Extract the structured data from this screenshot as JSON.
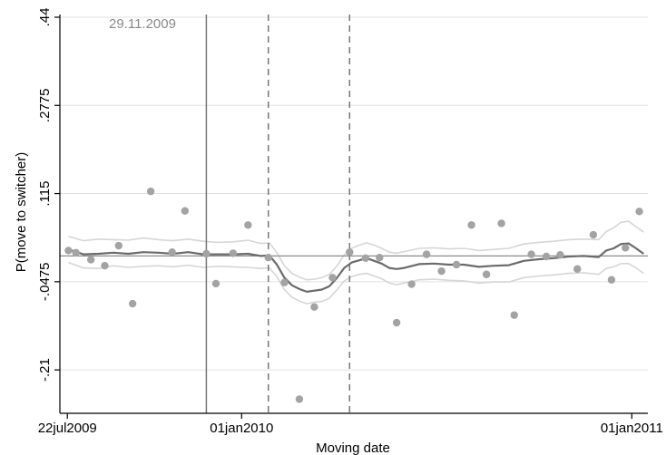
{
  "chart_data": {
    "type": "scatter",
    "xlabel": "Moving date",
    "ylabel": "P(move to switcher)",
    "x_tick_labels": [
      "22jul2009",
      "01jan2010",
      "01jan2011"
    ],
    "x_ticks": [
      "2009-07-22",
      "2010-01-01",
      "2011-01-01"
    ],
    "xlim": [
      "2009-07-15",
      "2011-01-16"
    ],
    "y_tick_labels": [
      ".44",
      ".2775",
      ".115",
      "-.0475",
      "-.21"
    ],
    "y_ticks": [
      0.44,
      0.2775,
      0.115,
      -0.0475,
      -0.21
    ],
    "ylim": [
      -0.29,
      0.445
    ],
    "grid": true,
    "reference_lines": {
      "horizontal_y": 0.0,
      "solid_vertical": "2009-11-29",
      "dashed_vertical": [
        "2010-01-26",
        "2010-04-12"
      ]
    },
    "annotation": "29.11.2009",
    "colors": {
      "scatter": "#a3a3a3",
      "trend": "#6b6b6b",
      "band": "#d6d6d6",
      "grid": "#e1e1e1",
      "refline": "#777777"
    },
    "series": [
      {
        "type": "scatter",
        "points": [
          {
            "x": "2009-07-23",
            "y": 0.01
          },
          {
            "x": "2009-07-30",
            "y": 0.006
          },
          {
            "x": "2009-08-13",
            "y": -0.007
          },
          {
            "x": "2009-08-26",
            "y": -0.018
          },
          {
            "x": "2009-09-08",
            "y": 0.019
          },
          {
            "x": "2009-09-21",
            "y": -0.088
          },
          {
            "x": "2009-10-08",
            "y": 0.119
          },
          {
            "x": "2009-10-28",
            "y": 0.007
          },
          {
            "x": "2009-11-09",
            "y": 0.083
          },
          {
            "x": "2009-11-29",
            "y": 0.004
          },
          {
            "x": "2009-12-08",
            "y": -0.051
          },
          {
            "x": "2009-12-24",
            "y": 0.005
          },
          {
            "x": "2010-01-07",
            "y": 0.057
          },
          {
            "x": "2010-01-26",
            "y": -0.003
          },
          {
            "x": "2010-02-10",
            "y": -0.049
          },
          {
            "x": "2010-02-24",
            "y": -0.264
          },
          {
            "x": "2010-03-10",
            "y": -0.094
          },
          {
            "x": "2010-03-27",
            "y": -0.04
          },
          {
            "x": "2010-04-12",
            "y": 0.007
          },
          {
            "x": "2010-04-27",
            "y": -0.004
          },
          {
            "x": "2010-05-10",
            "y": -0.003
          },
          {
            "x": "2010-05-26",
            "y": -0.123
          },
          {
            "x": "2010-06-09",
            "y": -0.052
          },
          {
            "x": "2010-06-23",
            "y": 0.003
          },
          {
            "x": "2010-07-07",
            "y": -0.028
          },
          {
            "x": "2010-07-21",
            "y": -0.016
          },
          {
            "x": "2010-08-04",
            "y": 0.057
          },
          {
            "x": "2010-08-18",
            "y": -0.034
          },
          {
            "x": "2010-09-01",
            "y": 0.06
          },
          {
            "x": "2010-09-13",
            "y": -0.109
          },
          {
            "x": "2010-09-29",
            "y": 0.003
          },
          {
            "x": "2010-10-13",
            "y": -0.001
          },
          {
            "x": "2010-10-26",
            "y": 0.002
          },
          {
            "x": "2010-11-11",
            "y": -0.024
          },
          {
            "x": "2010-11-26",
            "y": 0.039
          },
          {
            "x": "2010-12-13",
            "y": -0.044
          },
          {
            "x": "2010-12-26",
            "y": 0.015
          },
          {
            "x": "2011-01-08",
            "y": 0.082
          }
        ]
      },
      {
        "type": "line",
        "role": "moving-average",
        "points": [
          {
            "x": "2009-07-23",
            "y": 0.012
          },
          {
            "x": "2009-08-06",
            "y": 0.003
          },
          {
            "x": "2009-08-20",
            "y": 0.004
          },
          {
            "x": "2009-09-03",
            "y": 0.006
          },
          {
            "x": "2009-09-17",
            "y": 0.004
          },
          {
            "x": "2009-10-01",
            "y": 0.007
          },
          {
            "x": "2009-10-15",
            "y": 0.006
          },
          {
            "x": "2009-10-29",
            "y": 0.004
          },
          {
            "x": "2009-11-12",
            "y": 0.007
          },
          {
            "x": "2009-11-26",
            "y": 0.003
          },
          {
            "x": "2009-12-10",
            "y": 0.003
          },
          {
            "x": "2009-12-24",
            "y": 0.003
          },
          {
            "x": "2010-01-07",
            "y": 0.004
          },
          {
            "x": "2010-01-19",
            "y": 0.0
          },
          {
            "x": "2010-01-27",
            "y": 0.001
          },
          {
            "x": "2010-02-03",
            "y": -0.016
          },
          {
            "x": "2010-02-10",
            "y": -0.04
          },
          {
            "x": "2010-02-17",
            "y": -0.054
          },
          {
            "x": "2010-02-24",
            "y": -0.061
          },
          {
            "x": "2010-03-03",
            "y": -0.066
          },
          {
            "x": "2010-03-10",
            "y": -0.064
          },
          {
            "x": "2010-03-17",
            "y": -0.062
          },
          {
            "x": "2010-03-24",
            "y": -0.056
          },
          {
            "x": "2010-03-31",
            "y": -0.041
          },
          {
            "x": "2010-04-07",
            "y": -0.022
          },
          {
            "x": "2010-04-14",
            "y": -0.012
          },
          {
            "x": "2010-04-21",
            "y": -0.008
          },
          {
            "x": "2010-04-28",
            "y": -0.004
          },
          {
            "x": "2010-05-05",
            "y": -0.009
          },
          {
            "x": "2010-05-12",
            "y": -0.014
          },
          {
            "x": "2010-05-19",
            "y": -0.022
          },
          {
            "x": "2010-05-26",
            "y": -0.024
          },
          {
            "x": "2010-06-02",
            "y": -0.022
          },
          {
            "x": "2010-06-16",
            "y": -0.015
          },
          {
            "x": "2010-06-30",
            "y": -0.014
          },
          {
            "x": "2010-07-14",
            "y": -0.016
          },
          {
            "x": "2010-07-28",
            "y": -0.016
          },
          {
            "x": "2010-08-11",
            "y": -0.02
          },
          {
            "x": "2010-08-25",
            "y": -0.018
          },
          {
            "x": "2010-09-08",
            "y": -0.017
          },
          {
            "x": "2010-09-22",
            "y": -0.009
          },
          {
            "x": "2010-10-06",
            "y": -0.006
          },
          {
            "x": "2010-10-20",
            "y": -0.004
          },
          {
            "x": "2010-11-03",
            "y": -0.001
          },
          {
            "x": "2010-11-17",
            "y": 0.0
          },
          {
            "x": "2010-12-01",
            "y": -0.002
          },
          {
            "x": "2010-12-08",
            "y": 0.01
          },
          {
            "x": "2010-12-15",
            "y": 0.014
          },
          {
            "x": "2010-12-22",
            "y": 0.022
          },
          {
            "x": "2010-12-29",
            "y": 0.023
          },
          {
            "x": "2011-01-05",
            "y": 0.014
          },
          {
            "x": "2011-01-12",
            "y": 0.004
          }
        ]
      },
      {
        "type": "line",
        "role": "upper-band",
        "points": [
          {
            "x": "2009-07-23",
            "y": 0.036
          },
          {
            "x": "2009-08-06",
            "y": 0.028
          },
          {
            "x": "2009-08-20",
            "y": 0.031
          },
          {
            "x": "2009-09-03",
            "y": 0.03
          },
          {
            "x": "2009-09-17",
            "y": 0.029
          },
          {
            "x": "2009-10-01",
            "y": 0.033
          },
          {
            "x": "2009-10-15",
            "y": 0.03
          },
          {
            "x": "2009-10-29",
            "y": 0.028
          },
          {
            "x": "2009-11-12",
            "y": 0.031
          },
          {
            "x": "2009-11-26",
            "y": 0.027
          },
          {
            "x": "2009-12-10",
            "y": 0.025
          },
          {
            "x": "2009-12-24",
            "y": 0.026
          },
          {
            "x": "2010-01-07",
            "y": 0.029
          },
          {
            "x": "2010-01-19",
            "y": 0.023
          },
          {
            "x": "2010-01-27",
            "y": 0.024
          },
          {
            "x": "2010-02-03",
            "y": 0.006
          },
          {
            "x": "2010-02-10",
            "y": -0.018
          },
          {
            "x": "2010-02-17",
            "y": -0.032
          },
          {
            "x": "2010-02-24",
            "y": -0.039
          },
          {
            "x": "2010-03-03",
            "y": -0.044
          },
          {
            "x": "2010-03-10",
            "y": -0.043
          },
          {
            "x": "2010-03-17",
            "y": -0.04
          },
          {
            "x": "2010-03-24",
            "y": -0.034
          },
          {
            "x": "2010-03-31",
            "y": -0.019
          },
          {
            "x": "2010-04-07",
            "y": 0.002
          },
          {
            "x": "2010-04-14",
            "y": 0.014
          },
          {
            "x": "2010-04-21",
            "y": 0.02
          },
          {
            "x": "2010-04-28",
            "y": 0.024
          },
          {
            "x": "2010-05-05",
            "y": 0.02
          },
          {
            "x": "2010-05-12",
            "y": 0.014
          },
          {
            "x": "2010-05-19",
            "y": 0.007
          },
          {
            "x": "2010-05-26",
            "y": 0.005
          },
          {
            "x": "2010-06-02",
            "y": 0.008
          },
          {
            "x": "2010-06-16",
            "y": 0.014
          },
          {
            "x": "2010-06-30",
            "y": 0.015
          },
          {
            "x": "2010-07-14",
            "y": 0.013
          },
          {
            "x": "2010-07-28",
            "y": 0.014
          },
          {
            "x": "2010-08-11",
            "y": 0.01
          },
          {
            "x": "2010-08-25",
            "y": 0.012
          },
          {
            "x": "2010-09-08",
            "y": 0.014
          },
          {
            "x": "2010-09-22",
            "y": 0.022
          },
          {
            "x": "2010-10-06",
            "y": 0.025
          },
          {
            "x": "2010-10-20",
            "y": 0.027
          },
          {
            "x": "2010-11-03",
            "y": 0.03
          },
          {
            "x": "2010-11-17",
            "y": 0.031
          },
          {
            "x": "2010-12-01",
            "y": 0.03
          },
          {
            "x": "2010-12-08",
            "y": 0.045
          },
          {
            "x": "2010-12-15",
            "y": 0.052
          },
          {
            "x": "2010-12-22",
            "y": 0.062
          },
          {
            "x": "2010-12-29",
            "y": 0.064
          },
          {
            "x": "2011-01-05",
            "y": 0.054
          },
          {
            "x": "2011-01-12",
            "y": 0.044
          }
        ]
      },
      {
        "type": "line",
        "role": "lower-band",
        "points": [
          {
            "x": "2009-07-23",
            "y": -0.012
          },
          {
            "x": "2009-08-06",
            "y": -0.022
          },
          {
            "x": "2009-08-20",
            "y": -0.023
          },
          {
            "x": "2009-09-03",
            "y": -0.018
          },
          {
            "x": "2009-09-17",
            "y": -0.021
          },
          {
            "x": "2009-10-01",
            "y": -0.019
          },
          {
            "x": "2009-10-15",
            "y": -0.018
          },
          {
            "x": "2009-10-29",
            "y": -0.02
          },
          {
            "x": "2009-11-12",
            "y": -0.017
          },
          {
            "x": "2009-11-26",
            "y": -0.021
          },
          {
            "x": "2009-12-10",
            "y": -0.019
          },
          {
            "x": "2009-12-24",
            "y": -0.02
          },
          {
            "x": "2010-01-07",
            "y": -0.021
          },
          {
            "x": "2010-01-19",
            "y": -0.023
          },
          {
            "x": "2010-01-27",
            "y": -0.022
          },
          {
            "x": "2010-02-03",
            "y": -0.038
          },
          {
            "x": "2010-02-10",
            "y": -0.062
          },
          {
            "x": "2010-02-17",
            "y": -0.076
          },
          {
            "x": "2010-02-24",
            "y": -0.083
          },
          {
            "x": "2010-03-03",
            "y": -0.088
          },
          {
            "x": "2010-03-10",
            "y": -0.085
          },
          {
            "x": "2010-03-17",
            "y": -0.084
          },
          {
            "x": "2010-03-24",
            "y": -0.078
          },
          {
            "x": "2010-03-31",
            "y": -0.063
          },
          {
            "x": "2010-04-07",
            "y": -0.046
          },
          {
            "x": "2010-04-14",
            "y": -0.038
          },
          {
            "x": "2010-04-21",
            "y": -0.034
          },
          {
            "x": "2010-04-28",
            "y": -0.032
          },
          {
            "x": "2010-05-05",
            "y": -0.037
          },
          {
            "x": "2010-05-12",
            "y": -0.042
          },
          {
            "x": "2010-05-19",
            "y": -0.05
          },
          {
            "x": "2010-05-26",
            "y": -0.053
          },
          {
            "x": "2010-06-02",
            "y": -0.05
          },
          {
            "x": "2010-06-16",
            "y": -0.044
          },
          {
            "x": "2010-06-30",
            "y": -0.043
          },
          {
            "x": "2010-07-14",
            "y": -0.045
          },
          {
            "x": "2010-07-28",
            "y": -0.046
          },
          {
            "x": "2010-08-11",
            "y": -0.05
          },
          {
            "x": "2010-08-25",
            "y": -0.048
          },
          {
            "x": "2010-09-08",
            "y": -0.048
          },
          {
            "x": "2010-09-22",
            "y": -0.04
          },
          {
            "x": "2010-10-06",
            "y": -0.037
          },
          {
            "x": "2010-10-20",
            "y": -0.035
          },
          {
            "x": "2010-11-03",
            "y": -0.032
          },
          {
            "x": "2010-11-17",
            "y": -0.031
          },
          {
            "x": "2010-12-01",
            "y": -0.034
          },
          {
            "x": "2010-12-08",
            "y": -0.023
          },
          {
            "x": "2010-12-15",
            "y": -0.02
          },
          {
            "x": "2010-12-22",
            "y": -0.014
          },
          {
            "x": "2010-12-29",
            "y": -0.014
          },
          {
            "x": "2011-01-05",
            "y": -0.022
          },
          {
            "x": "2011-01-12",
            "y": -0.032
          }
        ]
      }
    ]
  }
}
